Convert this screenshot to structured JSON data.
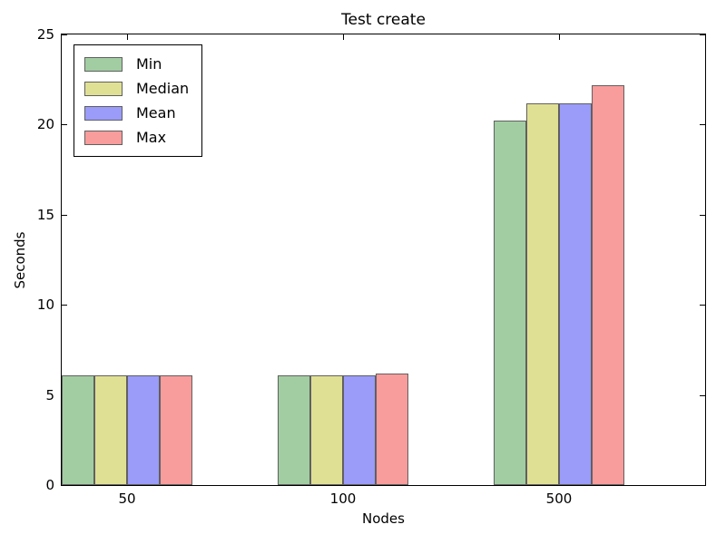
{
  "figure": {
    "background": "#ffffff",
    "frame_color": "#000000",
    "bar_edge_color": "#606060"
  },
  "chart_data": {
    "type": "bar",
    "title": "Test create",
    "xlabel": "Nodes",
    "ylabel": "Seconds",
    "categories": [
      "50",
      "100",
      "500"
    ],
    "series": [
      {
        "name": "Min",
        "color": "#a2cda2",
        "values": [
          6.1,
          6.1,
          20.2
        ]
      },
      {
        "name": "Median",
        "color": "#e0e095",
        "values": [
          6.1,
          6.1,
          21.2
        ]
      },
      {
        "name": "Mean",
        "color": "#9b9bf9",
        "values": [
          6.1,
          6.1,
          21.2
        ]
      },
      {
        "name": "Max",
        "color": "#f99c9c",
        "values": [
          6.1,
          6.2,
          22.2
        ]
      }
    ],
    "ylim": [
      0,
      25
    ],
    "yticks": [
      0,
      5,
      10,
      15,
      20,
      25
    ],
    "grid": false,
    "legend_position": "upper left"
  }
}
